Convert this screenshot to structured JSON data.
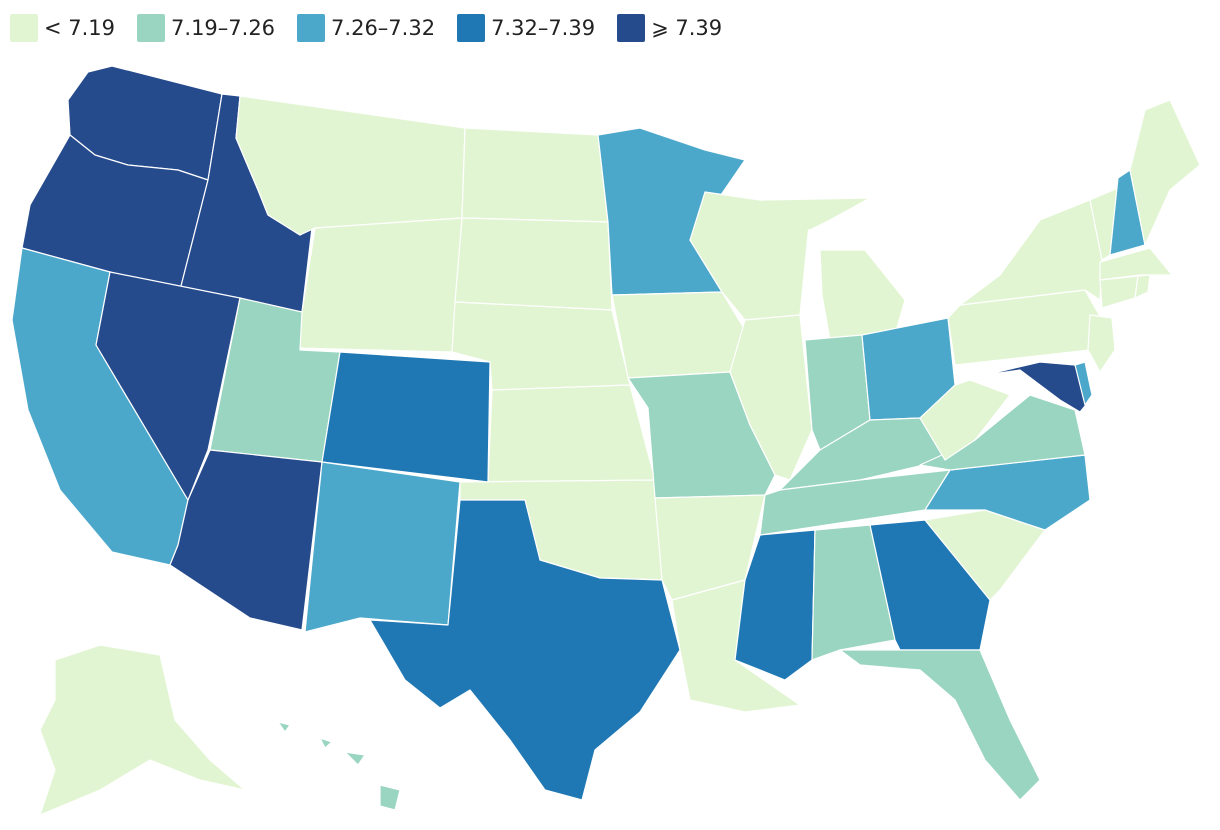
{
  "legend": {
    "bins": [
      {
        "label": "< 7.19",
        "color": "#e2f5d3"
      },
      {
        "label": "7.19–7.26",
        "color": "#99d5c0"
      },
      {
        "label": "7.26–7.32",
        "color": "#4ca8cb"
      },
      {
        "label": "7.32–7.39",
        "color": "#1f78b4"
      },
      {
        "label": "⩾ 7.39",
        "color": "#264b8d"
      }
    ]
  },
  "states": [
    {
      "id": "WA",
      "bin": 4
    },
    {
      "id": "OR",
      "bin": 4
    },
    {
      "id": "ID",
      "bin": 4
    },
    {
      "id": "NV",
      "bin": 4
    },
    {
      "id": "AZ",
      "bin": 4
    },
    {
      "id": "MD",
      "bin": 4
    },
    {
      "id": "CO",
      "bin": 3
    },
    {
      "id": "TX",
      "bin": 3
    },
    {
      "id": "MS",
      "bin": 3
    },
    {
      "id": "GA",
      "bin": 3
    },
    {
      "id": "CA",
      "bin": 2
    },
    {
      "id": "NM",
      "bin": 2
    },
    {
      "id": "MN",
      "bin": 2
    },
    {
      "id": "OH",
      "bin": 2
    },
    {
      "id": "NC",
      "bin": 2
    },
    {
      "id": "NH",
      "bin": 2
    },
    {
      "id": "DE",
      "bin": 2
    },
    {
      "id": "UT",
      "bin": 1
    },
    {
      "id": "MO",
      "bin": 1
    },
    {
      "id": "IN",
      "bin": 1
    },
    {
      "id": "KY",
      "bin": 1
    },
    {
      "id": "TN",
      "bin": 1
    },
    {
      "id": "AL",
      "bin": 1
    },
    {
      "id": "FL",
      "bin": 1
    },
    {
      "id": "VA",
      "bin": 1
    },
    {
      "id": "HI",
      "bin": 1
    },
    {
      "id": "MT",
      "bin": 0
    },
    {
      "id": "WY",
      "bin": 0
    },
    {
      "id": "ND",
      "bin": 0
    },
    {
      "id": "SD",
      "bin": 0
    },
    {
      "id": "NE",
      "bin": 0
    },
    {
      "id": "KS",
      "bin": 0
    },
    {
      "id": "OK",
      "bin": 0
    },
    {
      "id": "IA",
      "bin": 0
    },
    {
      "id": "AR",
      "bin": 0
    },
    {
      "id": "LA",
      "bin": 0
    },
    {
      "id": "WI",
      "bin": 0
    },
    {
      "id": "IL",
      "bin": 0
    },
    {
      "id": "MI",
      "bin": 0
    },
    {
      "id": "WV",
      "bin": 0
    },
    {
      "id": "SC",
      "bin": 0
    },
    {
      "id": "PA",
      "bin": 0
    },
    {
      "id": "NY",
      "bin": 0
    },
    {
      "id": "VT",
      "bin": 0
    },
    {
      "id": "ME",
      "bin": 0
    },
    {
      "id": "MA",
      "bin": 0
    },
    {
      "id": "CT",
      "bin": 0
    },
    {
      "id": "RI",
      "bin": 0
    },
    {
      "id": "NJ",
      "bin": 0
    },
    {
      "id": "AK",
      "bin": 0
    }
  ]
}
